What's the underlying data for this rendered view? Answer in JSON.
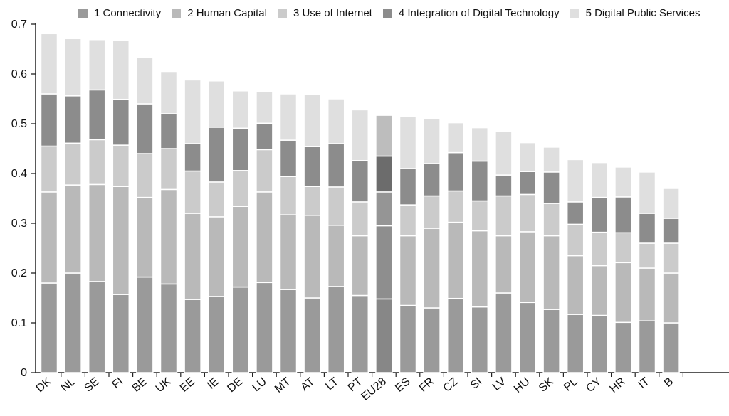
{
  "chart_data": {
    "type": "bar",
    "stacked": true,
    "categories": [
      "DK",
      "NL",
      "SE",
      "FI",
      "BE",
      "UK",
      "EE",
      "IE",
      "DE",
      "LU",
      "MT",
      "AT",
      "LT",
      "PT",
      "EU28",
      "ES",
      "FR",
      "CZ",
      "SI",
      "LV",
      "HU",
      "SK",
      "PL",
      "CY",
      "HR",
      "IT",
      "B"
    ],
    "series": [
      {
        "name": "1 Connectivity",
        "color": "#9a9a9a",
        "values": [
          0.18,
          0.2,
          0.183,
          0.157,
          0.192,
          0.178,
          0.147,
          0.153,
          0.172,
          0.181,
          0.167,
          0.15,
          0.173,
          0.155,
          0.148,
          0.135,
          0.13,
          0.149,
          0.132,
          0.16,
          0.141,
          0.127,
          0.117,
          0.115,
          0.101,
          0.104,
          0.1
        ]
      },
      {
        "name": "2 Human Capital",
        "color": "#b9b9b9",
        "values": [
          0.183,
          0.177,
          0.195,
          0.217,
          0.16,
          0.19,
          0.173,
          0.16,
          0.162,
          0.182,
          0.15,
          0.166,
          0.123,
          0.12,
          0.147,
          0.14,
          0.16,
          0.153,
          0.153,
          0.115,
          0.142,
          0.148,
          0.118,
          0.1,
          0.12,
          0.106,
          0.1
        ]
      },
      {
        "name": "3 Use of Internet",
        "color": "#cbcbcb",
        "values": [
          0.092,
          0.084,
          0.09,
          0.083,
          0.088,
          0.082,
          0.085,
          0.07,
          0.072,
          0.085,
          0.077,
          0.058,
          0.077,
          0.068,
          0.068,
          0.062,
          0.065,
          0.063,
          0.06,
          0.08,
          0.075,
          0.065,
          0.063,
          0.067,
          0.06,
          0.05,
          0.06
        ]
      },
      {
        "name": "4 Integration of Digital Technology",
        "color": "#8c8c8c",
        "values": [
          0.105,
          0.095,
          0.1,
          0.092,
          0.1,
          0.07,
          0.055,
          0.11,
          0.085,
          0.053,
          0.073,
          0.08,
          0.087,
          0.083,
          0.072,
          0.073,
          0.065,
          0.077,
          0.08,
          0.042,
          0.046,
          0.063,
          0.045,
          0.07,
          0.072,
          0.06,
          0.05
        ]
      },
      {
        "name": "5 Digital Public Services",
        "color": "#dfdfdf",
        "values": [
          0.121,
          0.115,
          0.101,
          0.118,
          0.093,
          0.085,
          0.128,
          0.093,
          0.075,
          0.063,
          0.093,
          0.105,
          0.09,
          0.102,
          0.082,
          0.105,
          0.09,
          0.06,
          0.067,
          0.087,
          0.058,
          0.05,
          0.085,
          0.07,
          0.06,
          0.083,
          0.06
        ]
      }
    ],
    "ylim": [
      0,
      0.7
    ],
    "yticks": [
      "0",
      "0.1",
      "0.2",
      "0.3",
      "0.4",
      "0.5",
      "0.6",
      "0.7"
    ],
    "highlight_category": "EU28",
    "highlight_colors": [
      "#878787",
      "#8e8e8e",
      "#959595",
      "#6c6c6c",
      "#bdbdbd"
    ],
    "legend_position": "top",
    "grid": false,
    "title": "",
    "xlabel": "",
    "ylabel": ""
  }
}
